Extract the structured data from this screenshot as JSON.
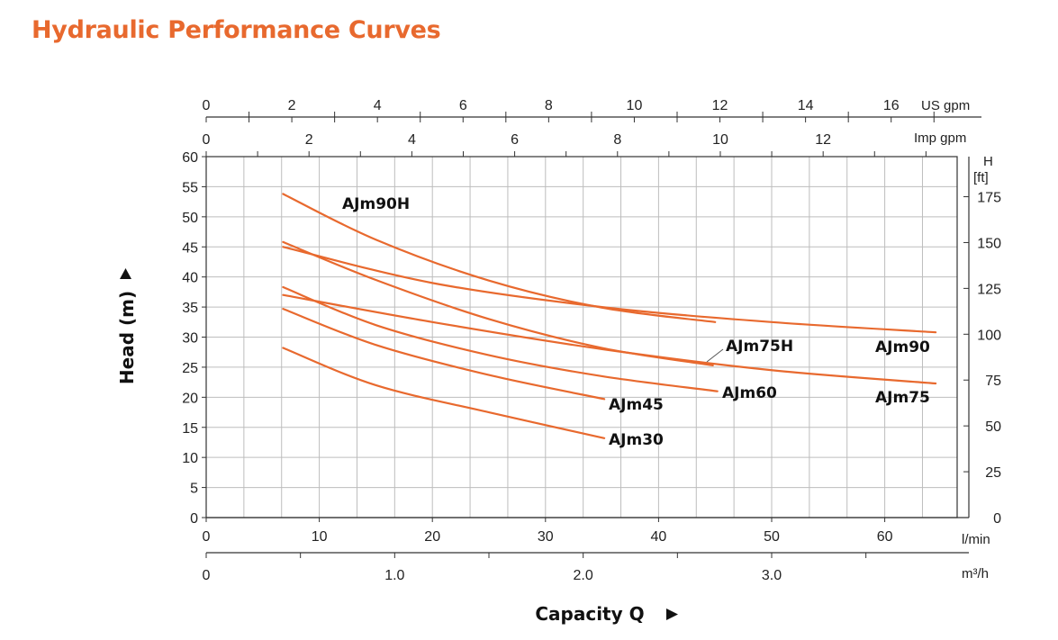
{
  "page_title": "Hydraulic Performance Curves",
  "colors": {
    "title": "#e8692e",
    "curve": "#e8692e",
    "grid": "#bdbdbd",
    "axis": "#333333"
  },
  "chart_data": {
    "type": "line",
    "title": "Hydraulic Performance Curves",
    "xlabel": "Capacity Q",
    "ylabel": "Head (m)",
    "x_unit": "l/min",
    "xlim": [
      0,
      67
    ],
    "ylim": [
      0,
      60
    ],
    "x_ticks": [
      0,
      10,
      20,
      30,
      40,
      50,
      60
    ],
    "y_ticks": [
      0,
      5,
      10,
      15,
      20,
      25,
      30,
      35,
      40,
      45,
      50,
      55,
      60
    ],
    "grid": true,
    "series": [
      {
        "name": "AJm90H",
        "x": [
          6.8,
          15,
          25,
          35,
          45
        ],
        "y": [
          53.8,
          46.2,
          39.4,
          34.9,
          32.5
        ]
      },
      {
        "name": "AJm90",
        "x": [
          6.8,
          20,
          35,
          50,
          64.5
        ],
        "y": [
          45.0,
          39.0,
          35.0,
          32.5,
          30.8
        ]
      },
      {
        "name": "AJm75H",
        "x": [
          6.8,
          15,
          25,
          35,
          44.8
        ],
        "y": [
          45.8,
          39.5,
          33.0,
          28.2,
          25.3
        ]
      },
      {
        "name": "AJm75",
        "x": [
          6.8,
          20,
          35,
          50,
          64.5
        ],
        "y": [
          37.0,
          32.5,
          28.0,
          24.5,
          22.3
        ]
      },
      {
        "name": "AJm60",
        "x": [
          6.8,
          15,
          25,
          35,
          45.2
        ],
        "y": [
          38.3,
          32.0,
          27.0,
          23.5,
          21.0
        ]
      },
      {
        "name": "AJm45",
        "x": [
          6.8,
          15,
          25,
          35.2
        ],
        "y": [
          34.7,
          28.7,
          23.7,
          19.7
        ]
      },
      {
        "name": "AJm30",
        "x": [
          6.8,
          15,
          25,
          35.2
        ],
        "y": [
          28.2,
          22.0,
          17.5,
          13.2
        ]
      }
    ],
    "secondary_axes": {
      "us_gpm": {
        "unit": "US gpm",
        "ticks": [
          "0",
          "2",
          "4",
          "6",
          "8",
          "10",
          "12",
          "14",
          "16"
        ]
      },
      "imp_gpm": {
        "unit": "Imp gpm",
        "ticks": [
          "0",
          "2",
          "4",
          "6",
          "8",
          "10",
          "12"
        ]
      },
      "feet": {
        "unit_line1": "H",
        "unit_line2": "[ft]",
        "ticks": [
          "0",
          "25",
          "50",
          "75",
          "100",
          "125",
          "150",
          "175"
        ]
      },
      "m3h": {
        "unit": "m³/h",
        "ticks": [
          "0",
          "1.0",
          "2.0",
          "3.0"
        ]
      }
    }
  }
}
